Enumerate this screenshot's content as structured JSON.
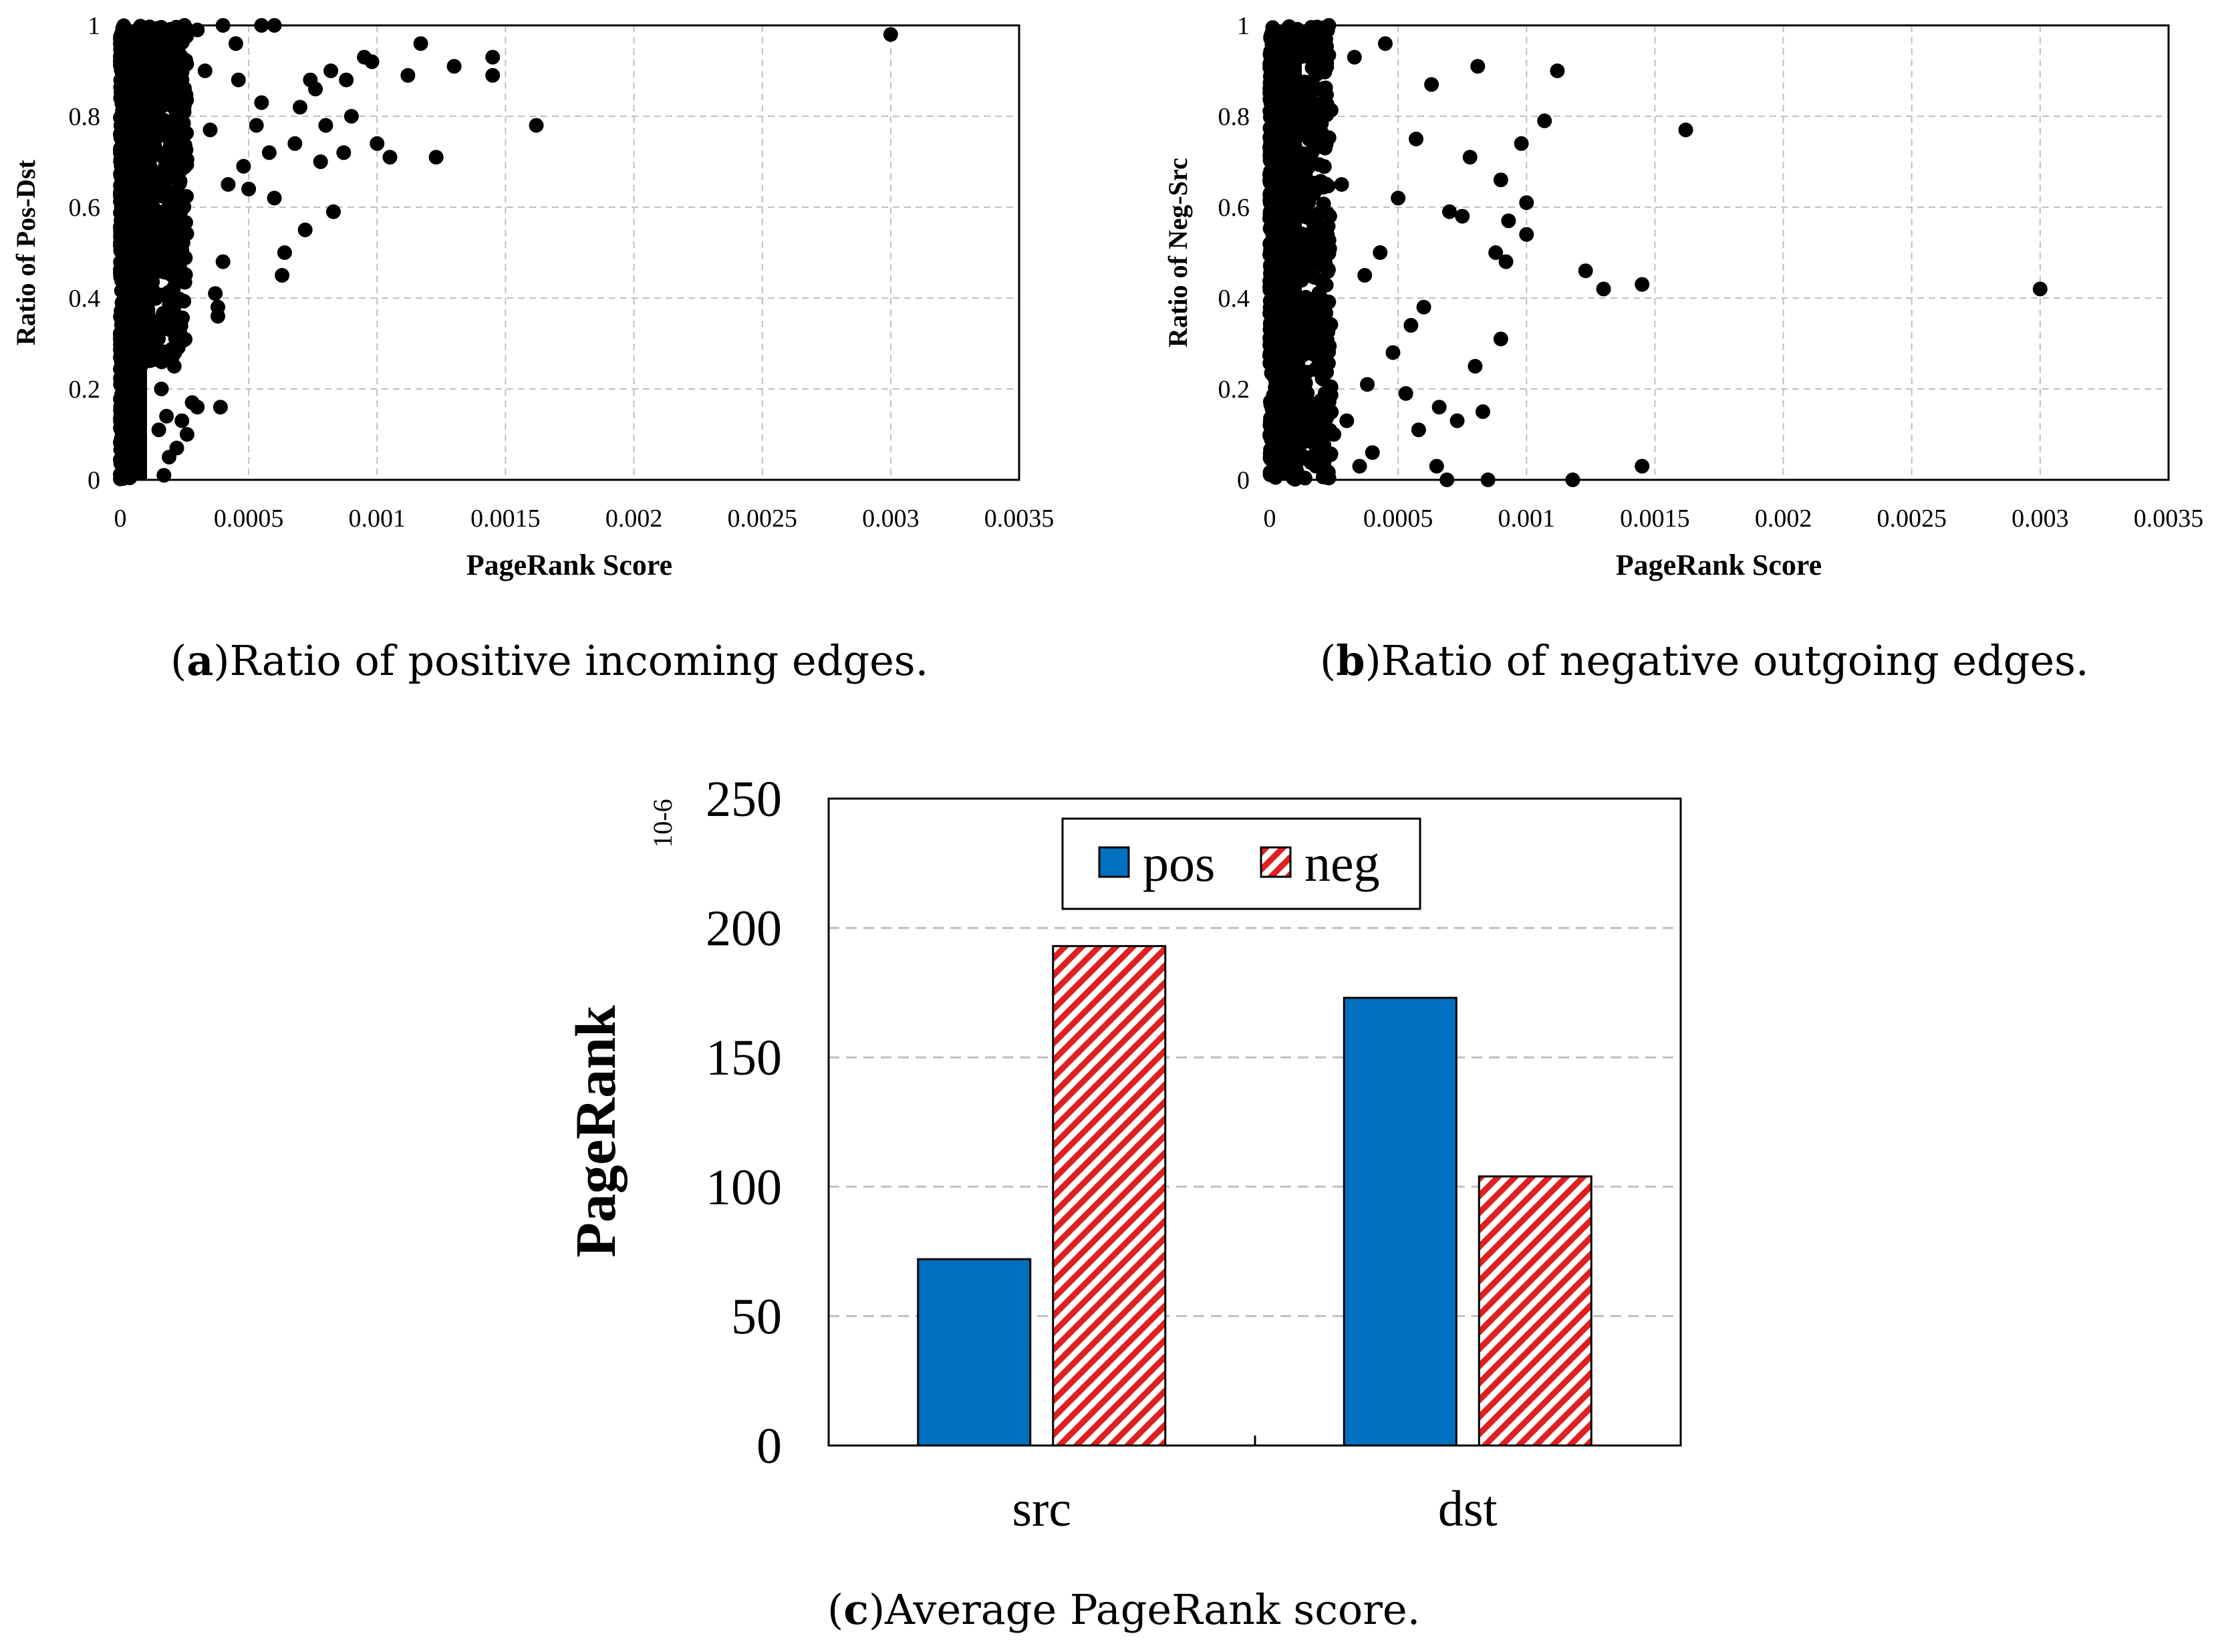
{
  "colors": {
    "pos": "#0070C0",
    "neg": "#E02020",
    "grid": "#BFBFBF",
    "point": "#000000"
  },
  "captions": {
    "a_tag": "a",
    "a_text": "Ratio of positive incoming edges.",
    "b_tag": "b",
    "b_text": "Ratio of negative outgoing edges.",
    "c_tag": "c",
    "c_text": "Average PageRank score."
  },
  "chart_data": [
    {
      "type": "scatter",
      "id": "a",
      "xlabel": "PageRank Score",
      "ylabel": "Ratio of Pos-Dst",
      "xlim": [
        0,
        0.0035
      ],
      "ylim": [
        0,
        1
      ],
      "xticks": [
        "0",
        "0.0005",
        "0.001",
        "0.0015",
        "0.002",
        "0.0025",
        "0.003",
        "0.0035"
      ],
      "yticks": [
        "0",
        "0.2",
        "0.4",
        "0.6",
        "0.8",
        "1"
      ],
      "grid": true,
      "points": [
        [
          0.003,
          0.98
        ],
        [
          0.00162,
          0.78
        ],
        [
          0.00145,
          0.93
        ],
        [
          0.00145,
          0.89
        ],
        [
          0.0013,
          0.91
        ],
        [
          0.00123,
          0.71
        ],
        [
          0.00117,
          0.96
        ],
        [
          0.00112,
          0.89
        ],
        [
          0.00105,
          0.71
        ],
        [
          0.001,
          0.74
        ],
        [
          0.00098,
          0.92
        ],
        [
          0.00095,
          0.93
        ],
        [
          0.0009,
          0.8
        ],
        [
          0.00088,
          0.88
        ],
        [
          0.00087,
          0.72
        ],
        [
          0.00083,
          0.59
        ],
        [
          0.00082,
          0.9
        ],
        [
          0.0008,
          0.78
        ],
        [
          0.00078,
          0.7
        ],
        [
          0.00076,
          0.86
        ],
        [
          0.00074,
          0.88
        ],
        [
          0.00072,
          0.55
        ],
        [
          0.0007,
          0.82
        ],
        [
          0.00068,
          0.74
        ],
        [
          0.00064,
          0.5
        ],
        [
          0.00063,
          0.45
        ],
        [
          0.0006,
          0.62
        ],
        [
          0.00058,
          0.72
        ],
        [
          0.00055,
          0.83
        ],
        [
          0.00053,
          0.78
        ],
        [
          0.0005,
          0.64
        ],
        [
          0.00048,
          0.69
        ],
        [
          0.00046,
          0.88
        ],
        [
          0.00045,
          0.96
        ],
        [
          0.00042,
          0.65
        ],
        [
          0.0004,
          0.48
        ],
        [
          0.00039,
          0.16
        ],
        [
          0.00038,
          0.36
        ],
        [
          0.00038,
          0.38
        ],
        [
          0.00037,
          0.41
        ],
        [
          0.00035,
          0.77
        ],
        [
          0.00033,
          0.9
        ],
        [
          0.0003,
          0.16
        ],
        [
          0.00028,
          0.17
        ],
        [
          0.00026,
          0.1
        ],
        [
          0.00024,
          0.13
        ],
        [
          0.00022,
          0.07
        ],
        [
          0.00021,
          0.25
        ],
        [
          0.00019,
          0.05
        ],
        [
          0.00018,
          0.14
        ],
        [
          0.00017,
          0.01
        ],
        [
          0.00016,
          0.2
        ],
        [
          0.00015,
          0.11
        ],
        [
          0.0006,
          1.0
        ],
        [
          0.00055,
          1.0
        ],
        [
          0.0004,
          1.0
        ],
        [
          0.0003,
          0.99
        ],
        [
          0.00025,
          1.0
        ]
      ]
    },
    {
      "type": "scatter",
      "id": "b",
      "xlabel": "PageRank Score",
      "ylabel": "Ratio of Neg-Src",
      "xlim": [
        0,
        0.0035
      ],
      "ylim": [
        0,
        1
      ],
      "xticks": [
        "0",
        "0.0005",
        "0.001",
        "0.0015",
        "0.002",
        "0.0025",
        "0.003",
        "0.0035"
      ],
      "yticks": [
        "0",
        "0.2",
        "0.4",
        "0.6",
        "0.8",
        "1"
      ],
      "grid": true,
      "points": [
        [
          0.003,
          0.42
        ],
        [
          0.00162,
          0.77
        ],
        [
          0.00145,
          0.43
        ],
        [
          0.00145,
          0.03
        ],
        [
          0.0013,
          0.42
        ],
        [
          0.00123,
          0.46
        ],
        [
          0.00118,
          0.0
        ],
        [
          0.00112,
          0.9
        ],
        [
          0.00107,
          0.79
        ],
        [
          0.001,
          0.61
        ],
        [
          0.001,
          0.54
        ],
        [
          0.00098,
          0.74
        ],
        [
          0.00093,
          0.57
        ],
        [
          0.00092,
          0.48
        ],
        [
          0.0009,
          0.66
        ],
        [
          0.0009,
          0.31
        ],
        [
          0.00088,
          0.5
        ],
        [
          0.00085,
          0.0
        ],
        [
          0.00083,
          0.15
        ],
        [
          0.00081,
          0.91
        ],
        [
          0.0008,
          0.25
        ],
        [
          0.00078,
          0.71
        ],
        [
          0.00075,
          0.58
        ],
        [
          0.00073,
          0.13
        ],
        [
          0.0007,
          0.59
        ],
        [
          0.00069,
          0.0
        ],
        [
          0.00066,
          0.16
        ],
        [
          0.00065,
          0.03
        ],
        [
          0.00063,
          0.87
        ],
        [
          0.0006,
          0.38
        ],
        [
          0.00058,
          0.11
        ],
        [
          0.00057,
          0.75
        ],
        [
          0.00055,
          0.34
        ],
        [
          0.00053,
          0.19
        ],
        [
          0.0005,
          0.62
        ],
        [
          0.00048,
          0.28
        ],
        [
          0.00045,
          0.96
        ],
        [
          0.00043,
          0.5
        ],
        [
          0.0004,
          0.06
        ],
        [
          0.00038,
          0.21
        ],
        [
          0.00037,
          0.45
        ],
        [
          0.00035,
          0.03
        ],
        [
          0.00033,
          0.93
        ],
        [
          0.0003,
          0.13
        ],
        [
          0.00028,
          0.65
        ],
        [
          0.00025,
          0.1
        ],
        [
          0.00023,
          1.0
        ],
        [
          0.0002,
          0.4
        ],
        [
          0.00018,
          0.03
        ],
        [
          0.00017,
          0.55
        ]
      ]
    },
    {
      "type": "bar",
      "id": "c",
      "categories": [
        "src",
        "dst"
      ],
      "series": [
        {
          "name": "pos",
          "values": [
            72,
            173
          ]
        },
        {
          "name": "neg",
          "values": [
            193,
            104
          ]
        }
      ],
      "ylabel": "PageRank",
      "yunit": "10-6",
      "ylim": [
        0,
        250
      ],
      "yticks": [
        "0",
        "50",
        "100",
        "150",
        "200",
        "250"
      ],
      "grid": true,
      "legend": "top"
    }
  ]
}
